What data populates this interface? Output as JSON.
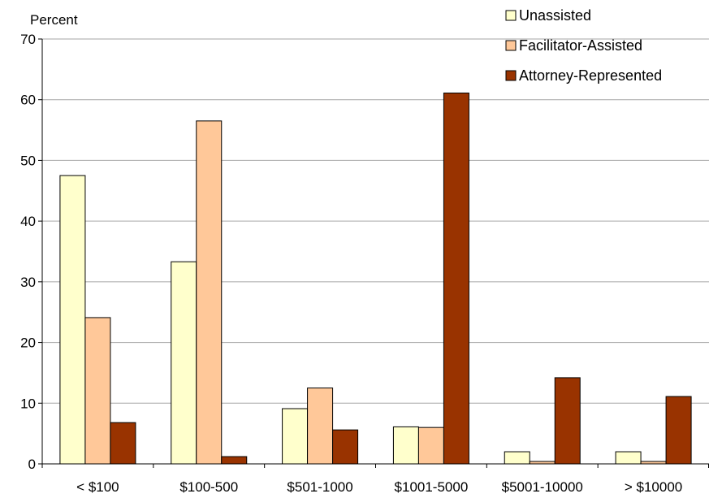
{
  "chart_data": {
    "type": "bar",
    "title": "",
    "ylabel": "Percent",
    "xlabel": "",
    "ylim": [
      0,
      70
    ],
    "ytick_step": 10,
    "grid": true,
    "legend_placement": "top-right",
    "categories": [
      "< $100",
      "$100-500",
      "$501-1000",
      "$1001-5000",
      "$5001-10000",
      "> $10000"
    ],
    "series": [
      {
        "name": "Unassisted",
        "color": "#ffffcc",
        "values": [
          47.5,
          33.3,
          9.1,
          6.1,
          2.0,
          2.0
        ]
      },
      {
        "name": "Facilitator-Assisted",
        "color": "#ffc899",
        "values": [
          24.1,
          56.5,
          12.5,
          6.0,
          0.4,
          0.4
        ]
      },
      {
        "name": "Attorney-Represented",
        "color": "#993300",
        "values": [
          6.8,
          1.2,
          5.6,
          61.1,
          14.2,
          11.1
        ]
      }
    ]
  }
}
